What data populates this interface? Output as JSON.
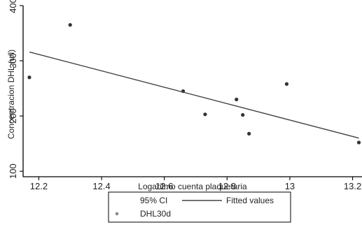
{
  "chart_data": {
    "type": "scatter",
    "title": "",
    "xlabel": "Logaritmo cuenta plaquetaria",
    "ylabel": "Concentracion DHL (u/l)",
    "xlim": [
      12.15,
      13.23
    ],
    "ylim": [
      90,
      400
    ],
    "x_ticks": [
      "12.2",
      "12.4",
      "12.6",
      "12.8",
      "13",
      "13.2"
    ],
    "y_ticks": [
      "100",
      "200",
      "300",
      "400"
    ],
    "series": [
      {
        "name": "DHL30d",
        "kind": "scatter",
        "x": [
          12.17,
          12.3,
          12.66,
          12.73,
          12.83,
          12.85,
          12.87,
          12.99,
          13.22
        ],
        "y": [
          270,
          365,
          245,
          203,
          230,
          202,
          168,
          258,
          152
        ]
      },
      {
        "name": "Fitted values",
        "kind": "line",
        "x": [
          12.17,
          13.22
        ],
        "y": [
          316,
          160
        ]
      }
    ],
    "legend": {
      "position": "bottom",
      "entries": [
        "95% CI",
        "Fitted values",
        "DHL30d"
      ]
    }
  },
  "colors": {
    "point": "#333333",
    "fit_line": "#444444"
  }
}
